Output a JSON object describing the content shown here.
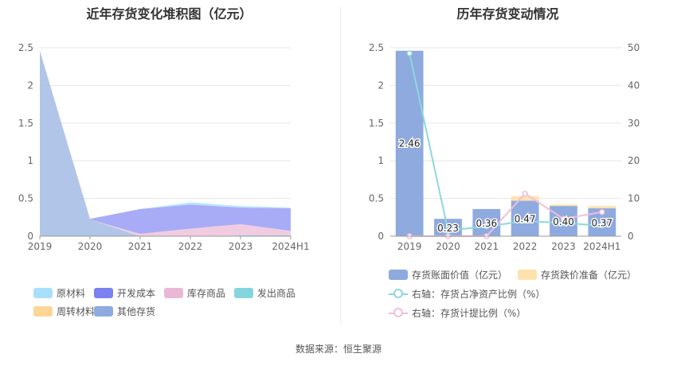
{
  "chart_data": [
    {
      "type": "area",
      "title": "近年存货变化堆积图（亿元）",
      "x": [
        "2019",
        "2020",
        "2021",
        "2022",
        "2023",
        "2024H1"
      ],
      "ylim": [
        0,
        2.5
      ],
      "yticks": [
        "0",
        "0.5",
        "1",
        "1.5",
        "2",
        "2.5"
      ],
      "stacked": true,
      "legend_position": "bottom",
      "series": [
        {
          "name": "其他存货",
          "color": "#a9bfe6",
          "values": [
            2.46,
            0.22,
            0.0,
            0.0,
            0.0,
            0.0
          ]
        },
        {
          "name": "发出商品",
          "color": "#8dd8dd",
          "values": [
            0.0,
            0.0,
            0.0,
            0.0,
            0.01,
            0.01
          ]
        },
        {
          "name": "库存商品",
          "color": "#f0c6de",
          "values": [
            0.0,
            0.0,
            0.03,
            0.1,
            0.15,
            0.06
          ]
        },
        {
          "name": "开发成本",
          "color": "#9fa3f5",
          "values": [
            0.0,
            0.01,
            0.33,
            0.32,
            0.22,
            0.3
          ]
        },
        {
          "name": "原材料",
          "color": "#b3e4fb",
          "values": [
            0.0,
            0.0,
            0.0,
            0.03,
            0.02,
            0.01
          ]
        },
        {
          "name": "周转材料",
          "color": "#fbd9a3",
          "values": [
            0.0,
            0.0,
            0.0,
            0.0,
            0.0,
            0.0
          ]
        }
      ],
      "legend": [
        {
          "name": "原材料",
          "color": "#a8e0fb"
        },
        {
          "name": "开发成本",
          "color": "#7b80f2"
        },
        {
          "name": "库存商品",
          "color": "#eab8d6"
        },
        {
          "name": "发出商品",
          "color": "#84d6dc"
        },
        {
          "name": "周转材料",
          "color": "#fbd697"
        },
        {
          "name": "其他存货",
          "color": "#8eaadf"
        }
      ]
    },
    {
      "type": "bar",
      "title": "历年存货变动情况",
      "categories": [
        "2019",
        "2020",
        "2021",
        "2022",
        "2023",
        "2024H1"
      ],
      "ylim": [
        0,
        2.5
      ],
      "yticks": [
        "0",
        "0.5",
        "1",
        "1.5",
        "2",
        "2.5"
      ],
      "y2lim": [
        0,
        50
      ],
      "y2ticks": [
        "0",
        "10",
        "20",
        "30",
        "40",
        "50"
      ],
      "legend_position": "bottom",
      "series": [
        {
          "name": "存货账面价值（亿元）",
          "kind": "bar",
          "color": "#8eaadf",
          "values": [
            2.46,
            0.23,
            0.36,
            0.47,
            0.4,
            0.37
          ],
          "labels": [
            "2.46",
            "0.23",
            "0.36",
            "0.47",
            "0.40",
            "0.37"
          ]
        },
        {
          "name": "存货跌价准备（亿元）",
          "kind": "bar",
          "color": "#fde2ad",
          "values": [
            0.0,
            0.0,
            0.0,
            0.06,
            0.02,
            0.03
          ]
        },
        {
          "name": "右轴：存货占净资产比例（%）",
          "kind": "line",
          "axis": "right",
          "color": "#8ed8dc",
          "values": [
            48.5,
            1.5,
            2.6,
            4.0,
            3.5,
            2.8
          ]
        },
        {
          "name": "右轴：存货计提比例（%）",
          "kind": "line",
          "axis": "right",
          "color": "#f0bedc",
          "values": [
            0.0,
            0.0,
            0.0,
            11.3,
            4.6,
            6.4
          ]
        }
      ]
    }
  ],
  "source": "数据来源：恒生聚源"
}
